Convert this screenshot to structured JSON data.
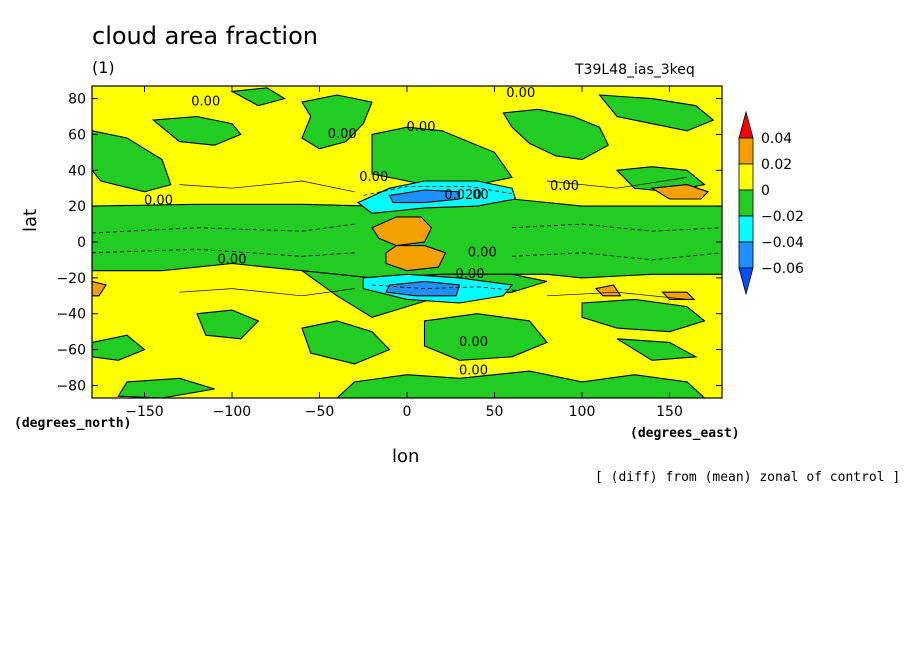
{
  "chart_data": {
    "type": "heatmap",
    "title": "cloud area fraction",
    "panel_label": "(1)",
    "run_id": "T39L48_ias_3keq",
    "xlabel": "lon",
    "ylabel": "lat",
    "x_units": "(degrees_east)",
    "y_units": "(degrees_north)",
    "note": "[ (diff) from (mean) zonal of control ]",
    "xlim": [
      -180,
      180
    ],
    "ylim": [
      -87,
      87
    ],
    "x_ticks": [
      -150,
      -100,
      -50,
      0,
      50,
      100,
      150
    ],
    "y_ticks": [
      80,
      60,
      40,
      20,
      0,
      -20,
      -40,
      -60,
      -80
    ],
    "colorbar": {
      "levels": [
        0.04,
        0.02,
        0,
        -0.02,
        -0.04,
        -0.06
      ],
      "labels": [
        "0.04",
        "0.02",
        "0",
        "−0.02",
        "−0.04",
        "−0.06"
      ],
      "colors": [
        "#ff0000",
        "#f4a000",
        "#ffff00",
        "#22cc22",
        "#00ffff",
        "#1e90ff",
        "#0050ff"
      ]
    },
    "contour_labels": [
      {
        "text": "0.00",
        "lon": -115,
        "lat": 76
      },
      {
        "text": "0.00",
        "lon": 65,
        "lat": 81
      },
      {
        "text": "0.00",
        "lon": -37,
        "lat": 58
      },
      {
        "text": "0.00",
        "lon": 8,
        "lat": 62
      },
      {
        "text": "0.00",
        "lon": -19,
        "lat": 34
      },
      {
        "text": "0.00",
        "lon": -142,
        "lat": 21
      },
      {
        "text": "0.020",
        "lon": 32,
        "lat": 24
      },
      {
        "text": "00",
        "lon": 42,
        "lat": 24
      },
      {
        "text": "0.00",
        "lon": 90,
        "lat": 29
      },
      {
        "text": "0.00",
        "lon": 43,
        "lat": -8
      },
      {
        "text": "0.00",
        "lon": 36,
        "lat": -20
      },
      {
        "text": "0.00",
        "lon": -100,
        "lat": -12
      },
      {
        "text": "0.00",
        "lon": 38,
        "lat": -58
      },
      {
        "text": "0.00",
        "lon": 38,
        "lat": -74
      }
    ]
  }
}
